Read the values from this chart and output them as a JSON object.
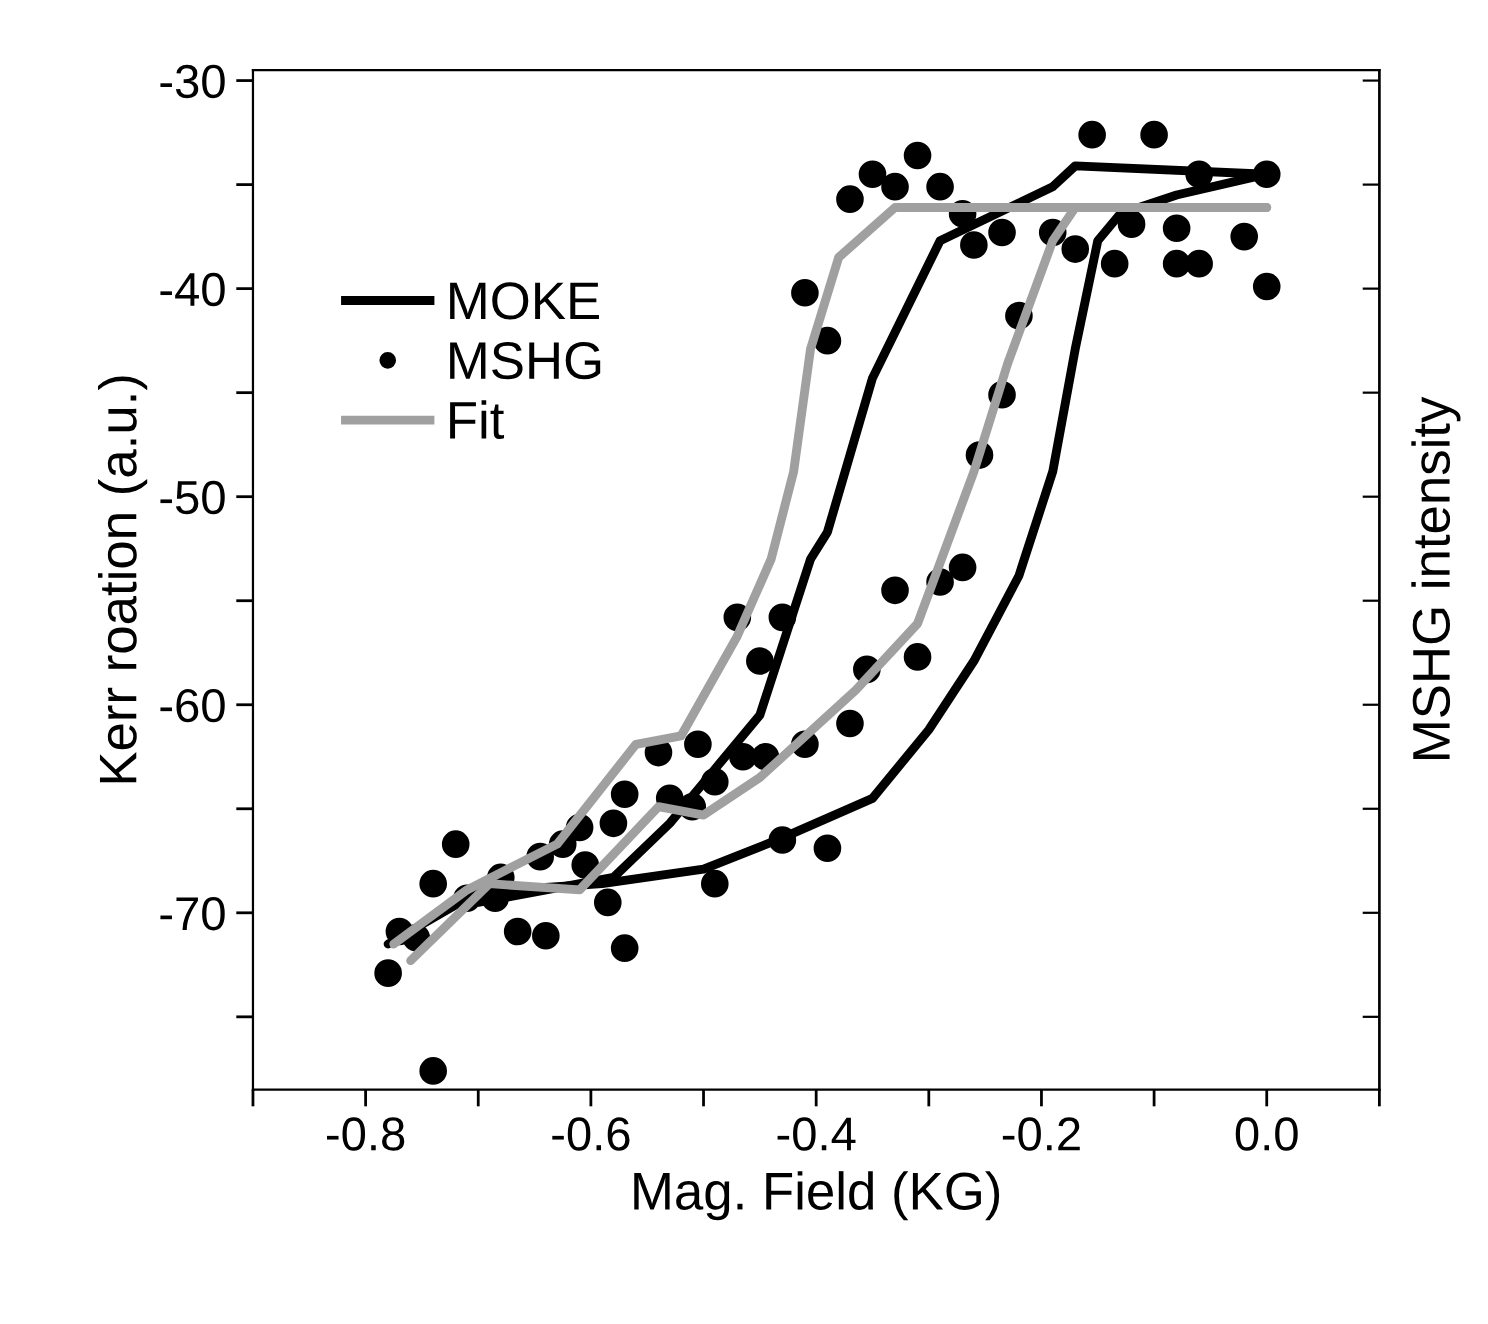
{
  "chart_data": {
    "type": "line",
    "xlabel": "Mag. Field (KG)",
    "ylabel": "Kerr roation (a.u.)",
    "y2label": "MSHG intensity",
    "xlim": [
      -0.9,
      0.1
    ],
    "xticks": [
      {
        "value": -0.9,
        "label": null
      },
      -0.8,
      {
        "value": -0.7,
        "label": null
      },
      -0.6,
      {
        "value": -0.5,
        "label": null
      },
      -0.4,
      {
        "value": -0.3,
        "label": null
      },
      -0.2,
      {
        "value": -0.1,
        "label": null
      },
      {
        "value": 0.0,
        "label": "0.0"
      },
      {
        "value": 0.1,
        "label": null
      }
    ],
    "ylim": [
      -78.5,
      -29.5
    ],
    "yticks": [
      -30,
      {
        "value": -35,
        "label": null
      },
      -40,
      {
        "value": -45,
        "label": null
      },
      -50,
      {
        "value": -55,
        "label": null
      },
      -60,
      {
        "value": -65,
        "label": null
      },
      -70,
      {
        "value": -75,
        "label": null
      }
    ],
    "grid": false,
    "legend": "top left",
    "series": [
      {
        "name": "MOKE",
        "color": "#000000",
        "marker": "none",
        "line_style": "solid",
        "x": [
          -0.78,
          -0.7,
          -0.59,
          -0.5,
          -0.43,
          -0.35,
          -0.3,
          -0.26,
          -0.22,
          -0.19,
          -0.17,
          -0.15,
          -0.13,
          -0.08,
          0.0
        ],
        "values": [
          -71.5,
          -69,
          -68.6,
          -67.9,
          -66.4,
          -64.5,
          -61.2,
          -57.9,
          -53.8,
          -48.8,
          -42.9,
          -37.7,
          -36.4,
          -35.5,
          -34.5
        ]
      },
      {
        "color": "#000000",
        "marker": "none",
        "line_style": "solid",
        "x": [
          -0.7,
          -0.58,
          -0.53,
          -0.49,
          -0.45,
          -0.405,
          -0.39,
          -0.35,
          -0.29,
          -0.19,
          -0.17,
          0.0
        ],
        "values": [
          -69.5,
          -68.3,
          -65.7,
          -63.1,
          -60.5,
          -53,
          -51.7,
          -44.3,
          -37.7,
          -35.1,
          -34.1,
          -34.5
        ]
      },
      {
        "name": "MSHG",
        "type": "scatter",
        "color": "#000000",
        "marker": "circle",
        "x": [
          -0.37,
          -0.35,
          -0.33,
          -0.31,
          -0.29,
          -0.27,
          -0.26,
          -0.235,
          -0.19,
          -0.17,
          -0.155,
          -0.135,
          -0.12,
          -0.1,
          -0.08,
          -0.08,
          -0.06,
          -0.06,
          -0.02,
          0.0,
          0.0,
          -0.41,
          -0.39,
          -0.22,
          -0.235,
          -0.255,
          -0.27,
          -0.33,
          -0.29,
          -0.47,
          -0.43,
          -0.45,
          -0.31,
          -0.355,
          -0.37,
          -0.41,
          -0.465,
          -0.445,
          -0.49,
          -0.505,
          -0.54,
          -0.57,
          -0.53,
          -0.51,
          -0.58,
          -0.61,
          -0.625,
          -0.645,
          -0.605,
          -0.68,
          -0.71,
          -0.585,
          -0.665,
          -0.64,
          -0.74,
          -0.72,
          -0.78,
          -0.77,
          -0.57,
          -0.43,
          -0.49,
          -0.39,
          -0.74,
          -0.755,
          -0.685
        ],
        "values": [
          -35.7,
          -34.5,
          -35.1,
          -33.6,
          -35.1,
          -36.4,
          -37.9,
          -37.3,
          -37.3,
          -38.1,
          -32.6,
          -38.8,
          -36.9,
          -32.6,
          -37.1,
          -38.8,
          -38.8,
          -34.5,
          -37.5,
          -34.5,
          -39.9,
          -40.2,
          -42.5,
          -41.3,
          -45.1,
          -48,
          -53.4,
          -54.5,
          -54.1,
          -55.8,
          -55.8,
          -57.9,
          -57.7,
          -58.3,
          -60.9,
          -61.9,
          -62.5,
          -62.5,
          -63.7,
          -61.9,
          -62.3,
          -64.3,
          -64.5,
          -64.9,
          -65.7,
          -65.9,
          -66.7,
          -67.3,
          -67.7,
          -68.3,
          -69.3,
          -69.5,
          -70.9,
          -71.1,
          -68.6,
          -66.7,
          -72.9,
          -70.9,
          -71.7,
          -66.5,
          -68.6,
          -66.9,
          -77.6,
          -71.2,
          -69.3
        ]
      },
      {
        "name": "Fit",
        "color": "#a0a0a0",
        "marker": "none",
        "line_style": "solid",
        "x": [
          -0.775,
          -0.71,
          -0.63,
          -0.56,
          -0.52,
          -0.47,
          -0.44,
          -0.42,
          -0.405,
          -0.38,
          -0.33,
          -0.17,
          0.0
        ],
        "values": [
          -71.5,
          -68.9,
          -66.7,
          -61.9,
          -61.5,
          -56.7,
          -53,
          -48.8,
          -42.9,
          -38.5,
          -36.1,
          -36.1,
          -36.1
        ]
      },
      {
        "color": "#a0a0a0",
        "marker": "none",
        "line_style": "solid",
        "x": [
          -0.76,
          -0.69,
          -0.61,
          -0.54,
          -0.5,
          -0.45,
          -0.365,
          -0.31,
          -0.26,
          -0.23,
          -0.19,
          -0.17,
          0.0
        ],
        "values": [
          -72.3,
          -68.6,
          -68.9,
          -64.9,
          -65.3,
          -63.5,
          -59.3,
          -56.1,
          -48.8,
          -43.6,
          -37.7,
          -36.1,
          -36.1
        ]
      }
    ]
  }
}
